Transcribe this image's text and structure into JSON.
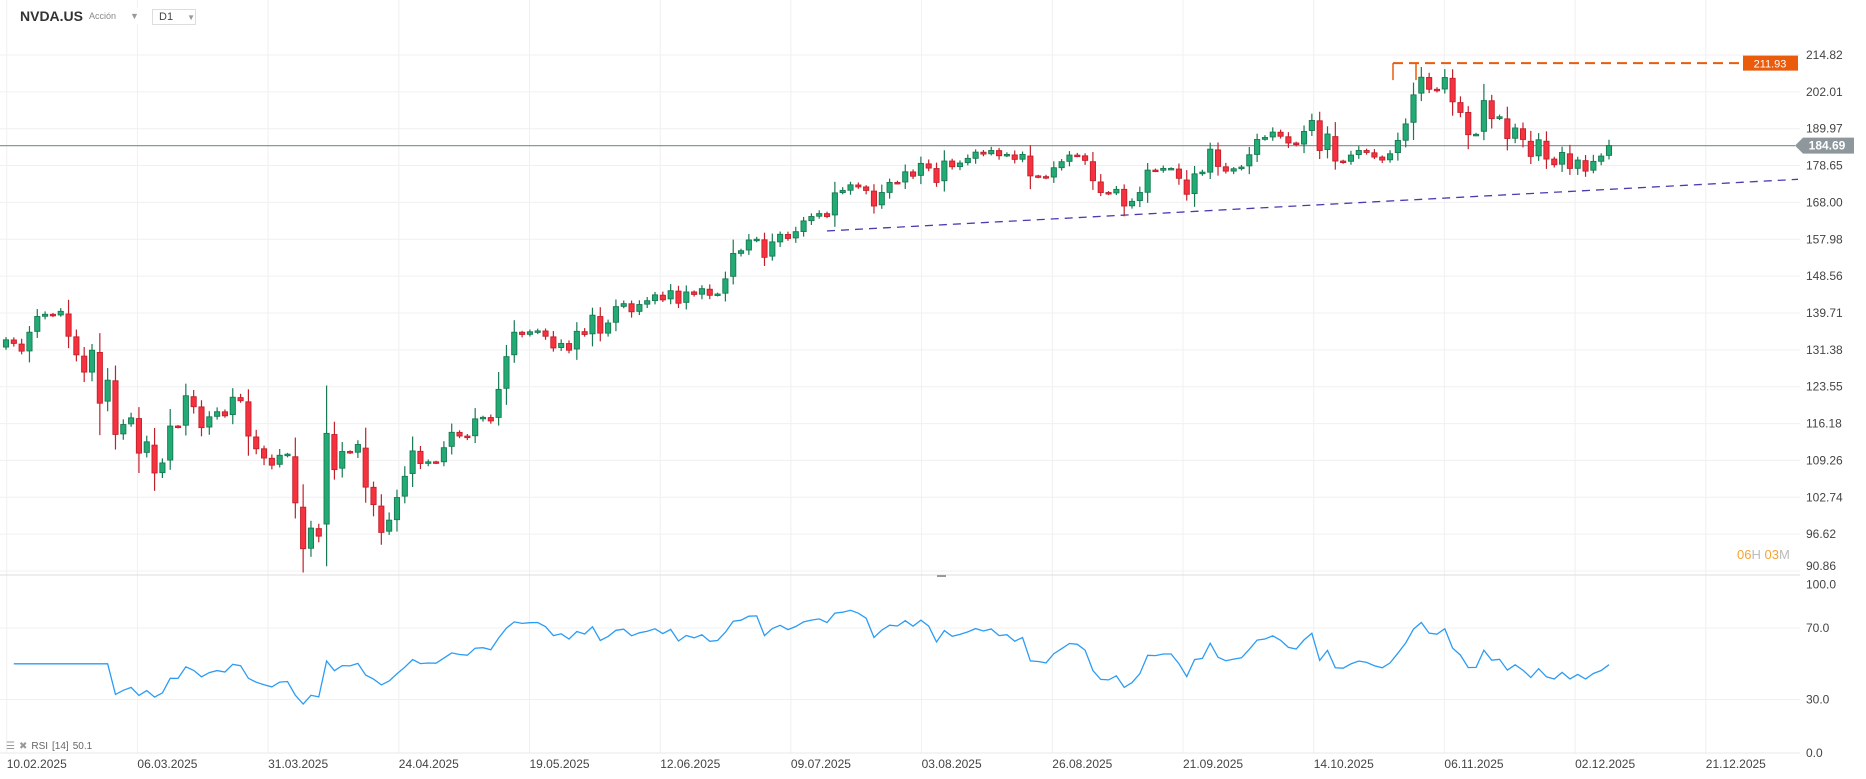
{
  "header": {
    "symbol": "NVDA.US",
    "instrument_type": "Acción",
    "timeframe": "D1"
  },
  "timer": {
    "hours": "06",
    "hours_unit": "H",
    "minutes": "03",
    "minutes_unit": "M"
  },
  "indicator": {
    "name": "RSI",
    "period": "[14]",
    "value": "50.1"
  },
  "colors": {
    "bull": "#22ab74",
    "bull_border": "#177a52",
    "bear": "#f7323f",
    "bear_border": "#c2202c",
    "rsi": "#2b9cf5",
    "resistance": "#ea5b0c",
    "trend": "#4a3bb0",
    "price_line": "#8e979c"
  },
  "chart_data": {
    "type": "candlestick",
    "title": "NVDA.US D1",
    "y_ticks": [
      "214.82",
      "202.01",
      "189.97",
      "178.65",
      "168.00",
      "157.98",
      "148.56",
      "139.71",
      "131.38",
      "123.55",
      "116.18",
      "109.26",
      "102.74",
      "96.62",
      "90.86"
    ],
    "ylim": [
      90.86,
      214.82
    ],
    "y_scale": "log",
    "x_ticks": [
      "10.02.2025",
      "06.03.2025",
      "31.03.2025",
      "24.04.2025",
      "19.05.2025",
      "12.06.2025",
      "09.07.2025",
      "03.08.2025",
      "26.08.2025",
      "21.09.2025",
      "14.10.2025",
      "06.11.2025",
      "02.12.2025",
      "21.12.2025"
    ],
    "current_price": "184.69",
    "resistance_level": "211.93",
    "trendline": {
      "start_index": 105,
      "start_value": 160.2,
      "end_value": 174.6
    },
    "close": [
      133.6,
      132.8,
      131.1,
      135.3,
      138.9,
      139.4,
      139.2,
      140.1,
      134.4,
      130.3,
      126.6,
      131.3,
      120.2,
      124.9,
      114.1,
      116.0,
      117.3,
      110.6,
      112.7,
      107.0,
      108.8,
      115.7,
      115.6,
      121.7,
      119.5,
      115.4,
      117.5,
      118.5,
      117.7,
      121.4,
      120.7,
      113.8,
      111.4,
      109.7,
      108.4,
      110.2,
      110.4,
      101.8,
      94.3,
      97.6,
      96.3,
      114.3,
      107.6,
      110.9,
      110.7,
      112.2,
      104.5,
      101.5,
      96.9,
      98.9,
      102.7,
      106.4,
      111.0,
      108.7,
      109.0,
      108.9,
      111.6,
      114.5,
      113.8,
      113.5,
      117.1,
      117.4,
      116.7,
      123.0,
      129.9,
      135.3,
      134.8,
      135.4,
      135.6,
      134.4,
      131.8,
      132.8,
      131.3,
      135.5,
      134.8,
      139.2,
      135.1,
      137.4,
      141.2,
      141.9,
      140.0,
      141.7,
      142.6,
      144.0,
      142.8,
      145.0,
      142.0,
      144.7,
      144.1,
      145.5,
      143.9,
      144.2,
      147.9,
      154.3,
      155.0,
      157.8,
      158.0,
      153.3,
      157.3,
      159.3,
      158.2,
      160.0,
      162.9,
      164.1,
      164.9,
      164.1,
      170.7,
      171.4,
      173.0,
      172.4,
      171.4,
      167.0,
      170.8,
      173.7,
      173.5,
      176.8,
      175.5,
      179.3,
      177.9,
      173.7,
      180.0,
      178.3,
      179.4,
      180.8,
      182.7,
      182.1,
      183.2,
      181.6,
      182.0,
      180.5,
      182.0,
      175.6,
      175.4,
      175.0,
      178.0,
      179.8,
      181.8,
      181.6,
      180.2,
      174.2,
      170.8,
      170.6,
      171.7,
      167.0,
      168.3,
      170.8,
      177.3,
      177.2,
      177.8,
      177.8,
      174.9,
      170.3,
      176.2,
      176.7,
      183.6,
      178.4,
      177.0,
      177.7,
      178.2,
      181.9,
      186.6,
      187.2,
      188.9,
      187.6,
      185.5,
      185.0,
      189.1,
      192.6,
      183.2,
      188.3,
      180.0,
      179.8,
      181.8,
      183.2,
      182.6,
      181.2,
      180.3,
      182.2,
      186.3,
      191.5,
      201.0,
      207.0,
      202.9,
      202.5,
      206.9,
      198.7,
      195.2,
      188.1,
      188.2,
      199.1,
      193.2,
      193.8,
      186.9,
      190.2,
      186.6,
      181.4,
      186.5,
      180.6,
      178.9,
      182.6,
      177.8,
      180.3,
      177.0,
      179.9,
      181.5,
      184.7
    ],
    "open_first": 132.0,
    "rsi": {
      "name": "RSI",
      "period": 14,
      "last": 50.1,
      "y_ticks": [
        "100.0",
        "70.0",
        "30.0",
        "0.0"
      ],
      "ylim": [
        0,
        100
      ]
    }
  }
}
